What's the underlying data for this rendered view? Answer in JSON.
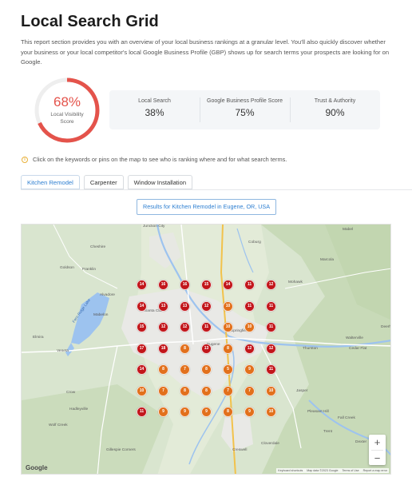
{
  "page": {
    "title": "Local Search Grid",
    "intro": "This report section provides you with an overview of your local business rankings at a granular level. You'll also quickly discover whether your business or your local competitor's local Google Business Profile (GBP) shows up for search terms your prospects are looking for on Google."
  },
  "visibility": {
    "value": "68%",
    "fraction": 0.68,
    "label_line1": "Local Visibility",
    "label_line2": "Score",
    "color": "#e4534b"
  },
  "scores": [
    {
      "label": "Local Search",
      "value": "38%"
    },
    {
      "label": "Google Business Profile Score",
      "value": "75%"
    },
    {
      "label": "Trust & Authority",
      "value": "90%"
    }
  ],
  "hint": {
    "icon": "info-icon",
    "text": "Click on the keywords or pins on the map to see who is ranking where and for what search terms."
  },
  "tabs": [
    {
      "label": "Kitchen Remodel",
      "active": true
    },
    {
      "label": "Carpenter",
      "active": false
    },
    {
      "label": "Window Installation",
      "active": false
    }
  ],
  "results_label": "Results for Kitchen Remodel in Eugene, OR, USA",
  "map": {
    "place_labels": [
      "Junction City",
      "Mabel",
      "Cheshire",
      "Goldson",
      "Franklin",
      "Marcola",
      "Mohawk",
      "Alvadore",
      "Fern Ridge Lake",
      "Mabelon",
      "Elmira",
      "Veneta",
      "Walterville",
      "Cedar Flat",
      "Deerh",
      "Crow",
      "Hadleyville",
      "Jasper",
      "Pleasant Hill",
      "Fall Creek",
      "Wolf Creek",
      "Trent",
      "Dexter",
      "Lowe",
      "Cloverdale",
      "Creswell",
      "Gillespie Corners",
      "Coburg",
      "Springfield",
      "Eugene",
      "Thurston",
      "Santa Clara"
    ],
    "pins": [
      [
        14,
        16,
        16,
        15,
        14,
        11,
        12
      ],
      [
        14,
        13,
        13,
        12,
        10,
        11,
        11
      ],
      [
        15,
        12,
        12,
        11,
        10,
        10,
        11
      ],
      [
        17,
        18,
        8,
        13,
        8,
        12,
        12
      ],
      [
        14,
        8,
        7,
        8,
        5,
        9,
        11
      ],
      [
        10,
        7,
        8,
        8,
        7,
        7,
        10
      ],
      [
        11,
        9,
        9,
        9,
        8,
        9,
        10
      ]
    ],
    "pin_colors": [
      [
        "r",
        "r",
        "r",
        "r",
        "r",
        "r",
        "r"
      ],
      [
        "r",
        "r",
        "r",
        "r",
        "o",
        "r",
        "r"
      ],
      [
        "r",
        "r",
        "r",
        "r",
        "o",
        "o",
        "r"
      ],
      [
        "r",
        "r",
        "o",
        "r",
        "o",
        "r",
        "r"
      ],
      [
        "r",
        "o",
        "o",
        "o",
        "o",
        "o",
        "r"
      ],
      [
        "o",
        "o",
        "o",
        "o",
        "o",
        "o",
        "o"
      ],
      [
        "r",
        "o",
        "o",
        "o",
        "o",
        "o",
        "o"
      ]
    ],
    "red_color": "#c2161b",
    "orange_color": "#e2701c",
    "zoom_in": "+",
    "zoom_out": "−",
    "brand": "Google",
    "attribution": [
      "Keyboard shortcuts",
      "Map data ©2023 Google",
      "Terms of Use",
      "Report a map error"
    ]
  }
}
